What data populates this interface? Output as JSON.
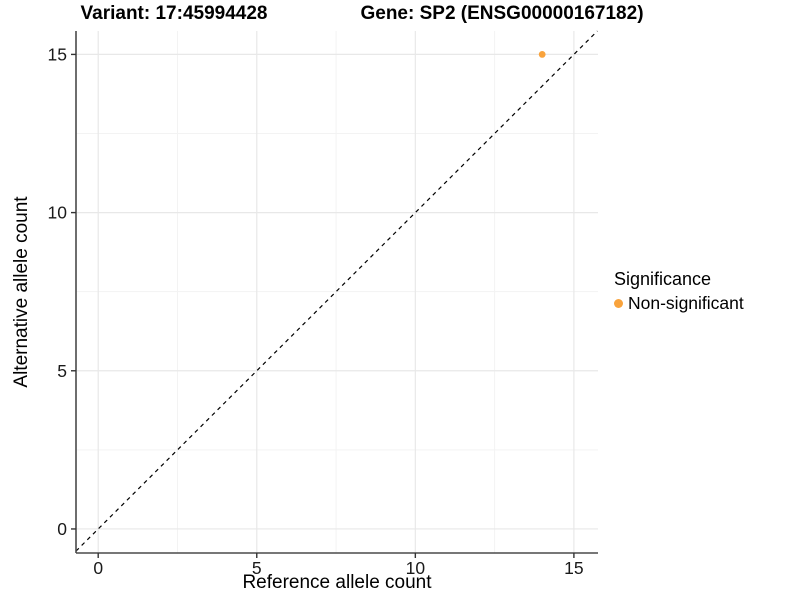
{
  "header": {
    "title_left": "Variant: 17:45994428",
    "title_right": "Gene: SP2 (ENSG00000167182)"
  },
  "chart_data": {
    "type": "scatter",
    "title": "Variant: 17:45994428    Gene: SP2 (ENSG00000167182)",
    "xlabel": "Reference allele count",
    "ylabel": "Alternative allele count",
    "xlim": [
      -0.7,
      15.76
    ],
    "ylim": [
      -0.76,
      15.74
    ],
    "xticks": [
      0,
      5,
      10,
      15
    ],
    "yticks": [
      0,
      5,
      10,
      15
    ],
    "grid": "major and minor gridlines on",
    "legend_position": "right",
    "series": [
      {
        "name": "Non-significant",
        "color": "#F9A33C",
        "points": [
          {
            "x": 14,
            "y": 15
          }
        ]
      }
    ],
    "reference_line": {
      "kind": "identity y=x",
      "slope": 1,
      "intercept": 0,
      "style": "dashed",
      "color": "#000000"
    },
    "legend": {
      "title": "Significance",
      "items": [
        {
          "label": "Non-significant",
          "color": "#F9A33C"
        }
      ]
    }
  },
  "colors": {
    "grid_major": "#E8E8E8",
    "grid_minor": "#F3F3F3",
    "axis_line": "#4A4A4A",
    "tick_mark": "#333333",
    "tick_label": "#1A1A1A",
    "point": "#F9A33C"
  }
}
